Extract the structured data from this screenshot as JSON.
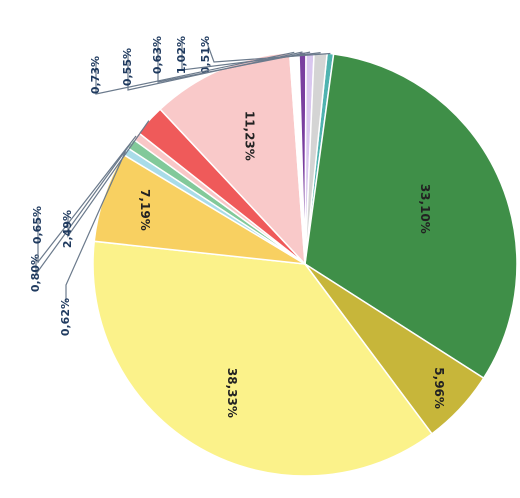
{
  "chart_data": {
    "type": "pie",
    "title": "",
    "slices": [
      {
        "label": "0,51%",
        "value": 0.51,
        "color": "#4fb3b0"
      },
      {
        "label": "33,10%",
        "value": 33.1,
        "color": "#3f8f48"
      },
      {
        "label": "5,96%",
        "value": 5.96,
        "color": "#c7b63a"
      },
      {
        "label": "38,33%",
        "value": 38.33,
        "color": "#fbf28a"
      },
      {
        "label": "7,19%",
        "value": 7.19,
        "color": "#f8d061"
      },
      {
        "label": "0,62%",
        "value": 0.62,
        "color": "#a9dce8"
      },
      {
        "label": "0,80%",
        "value": 0.8,
        "color": "#82c99a"
      },
      {
        "label": "0,65%",
        "value": 0.65,
        "color": "#f9c7c7"
      },
      {
        "label": "2,49%",
        "value": 2.49,
        "color": "#ef5a5a"
      },
      {
        "label": "11,23%",
        "value": 11.23,
        "color": "#f9c9c9"
      },
      {
        "label": "0,73%",
        "value": 0.73,
        "color": "#ffffff"
      },
      {
        "label": "0,55%",
        "value": 0.55,
        "color": "#7a3fa0"
      },
      {
        "label": "0,63%",
        "value": 0.63,
        "color": "#d9c7ef"
      },
      {
        "label": "1,02%",
        "value": 1.02,
        "color": "#d4d4d4"
      }
    ]
  }
}
